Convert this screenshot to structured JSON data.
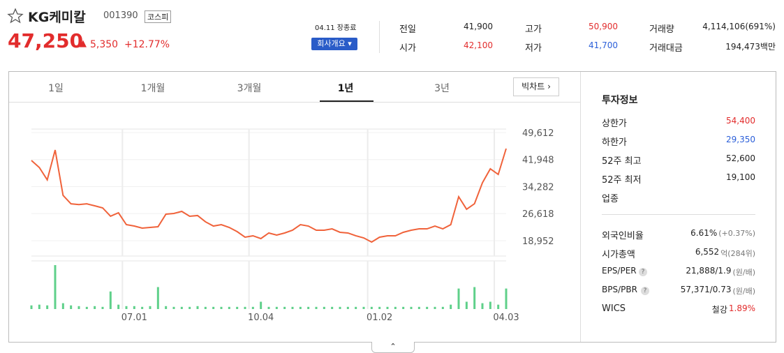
{
  "header": {
    "name": "KG케미칼",
    "code": "001390",
    "market": "코스피",
    "price": "47,250",
    "change_arrow": "▲",
    "change": "5,350",
    "change_pct": "+12.77%",
    "status": "04.11 장종료",
    "company_button": "회사개요"
  },
  "quote": [
    {
      "label": "전일",
      "value": "41,900"
    },
    {
      "label": "시가",
      "value": "42,100"
    },
    {
      "label": "고가",
      "value": "50,900"
    },
    {
      "label": "저가",
      "value": "41,700"
    },
    {
      "label": "거래량",
      "value": "4,114,106(691%)"
    },
    {
      "label": "거래대금",
      "value": "194,473백만"
    }
  ],
  "tabs": [
    "1일",
    "1개월",
    "3개월",
    "1년",
    "3년"
  ],
  "big_chart": "빅차트",
  "invest": {
    "title": "투자정보",
    "rows": [
      {
        "label": "상한가",
        "value": "54,400"
      },
      {
        "label": "하한가",
        "value": "29,350"
      },
      {
        "label": "52주 최고",
        "value": "52,600"
      },
      {
        "label": "52주 최저",
        "value": "19,100"
      },
      {
        "label": "업종",
        "value": ""
      }
    ],
    "rows2": [
      {
        "label": "외국인비율",
        "value": "6.61%",
        "note": "(+0.37%)"
      },
      {
        "label": "시가총액",
        "value": "6,552",
        "note": "억(284위)"
      },
      {
        "label": "EPS/PER",
        "value": "21,888/1.9",
        "note": "(원/배)"
      },
      {
        "label": "BPS/PBR",
        "value": "57,371/0.73",
        "note": "(원/배)"
      },
      {
        "label": "WICS",
        "value": "철강",
        "note": "1.89%"
      }
    ]
  },
  "chart_data": {
    "type": "line",
    "color": "#f0623a",
    "volume_color": "#5fd08a",
    "categories": [
      null,
      null,
      null,
      null,
      null,
      null,
      null,
      null,
      null,
      null,
      null,
      null,
      null,
      "07.01",
      null,
      null,
      null,
      null,
      null,
      null,
      null,
      null,
      null,
      null,
      null,
      null,
      null,
      null,
      null,
      "10.04",
      null,
      null,
      null,
      null,
      null,
      null,
      null,
      null,
      null,
      null,
      null,
      null,
      null,
      null,
      "01.02",
      null,
      null,
      null,
      null,
      null,
      null,
      null,
      null,
      null,
      null,
      null,
      null,
      null,
      null,
      null,
      "04.03"
    ],
    "values": [
      41700,
      39700,
      36200,
      44660,
      31800,
      29400,
      29200,
      29400,
      28840,
      28250,
      25880,
      26860,
      23500,
      23100,
      22510,
      22710,
      22900,
      26470,
      26670,
      27260,
      25880,
      26080,
      24300,
      23100,
      23500,
      22710,
      21520,
      19940,
      20340,
      19550,
      21130,
      20540,
      21130,
      21920,
      23500,
      23100,
      21920,
      21920,
      22310,
      21330,
      21130,
      20340,
      19740,
      18560,
      19940,
      20340,
      20340,
      21330,
      21920,
      22310,
      22310,
      23100,
      22310,
      23500,
      31410,
      27860,
      29430,
      35370,
      39330,
      37740,
      45060
    ],
    "volume": [
      5,
      6,
      5,
      60,
      8,
      5,
      4,
      3,
      4,
      3,
      24,
      6,
      4,
      4,
      3,
      4,
      30,
      4,
      3,
      3,
      3,
      4,
      3,
      3,
      3,
      3,
      3,
      3,
      3,
      10,
      3,
      3,
      3,
      3,
      3,
      3,
      3,
      3,
      3,
      3,
      3,
      3,
      3,
      3,
      3,
      3,
      3,
      3,
      3,
      3,
      3,
      3,
      3,
      6,
      28,
      10,
      30,
      8,
      10,
      6,
      28
    ],
    "ylim": [
      14600,
      50600
    ],
    "yticks": [
      {
        "value": 49612,
        "label": "49,612"
      },
      {
        "value": 41948,
        "label": "41,948"
      },
      {
        "value": 34282,
        "label": "34,282"
      },
      {
        "value": 26618,
        "label": "26,618"
      },
      {
        "value": 18952,
        "label": "18,952"
      }
    ],
    "grid": true
  }
}
